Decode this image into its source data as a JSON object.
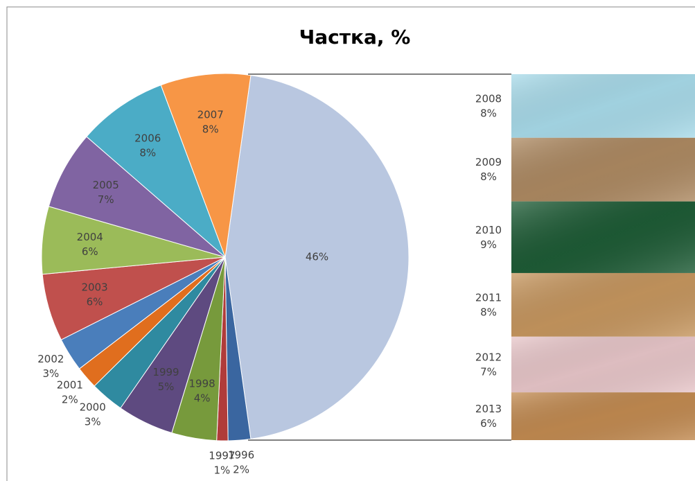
{
  "chart_data": {
    "type": "bar-of-pie",
    "title": "Частка, %",
    "categories": [
      null,
      "1996",
      "1997",
      "1998",
      "1999",
      "2000",
      "2001",
      "2002",
      "2003",
      "2004",
      "2005",
      "2006",
      "2007"
    ],
    "values": [
      46,
      2,
      1,
      4,
      5,
      3,
      2,
      3,
      6,
      6,
      7,
      8,
      8
    ],
    "value_labels": [
      "46%",
      "2%",
      "1%",
      "4%",
      "5%",
      "3%",
      "2%",
      "3%",
      "6%",
      "6%",
      "7%",
      "8%",
      "8%"
    ],
    "colors": [
      "#b9c7e0",
      "#3a66a0",
      "#b03c3a",
      "#779a3c",
      "#5e4a80",
      "#2f8aa0",
      "#e06e1e",
      "#4a7ebb",
      "#c0504d",
      "#9bbb59",
      "#8064a2",
      "#4bacc6",
      "#f79646"
    ],
    "bar": {
      "categories": [
        "2008",
        "2009",
        "2010",
        "2011",
        "2012",
        "2013"
      ],
      "values": [
        8,
        8,
        9,
        8,
        7,
        6
      ],
      "value_labels": [
        "8%",
        "8%",
        "9%",
        "8%",
        "7%",
        "6%"
      ],
      "colors": [
        "#a9dceb",
        "#ae8a62",
        "#1e5c36",
        "#c7975f",
        "#e9c7ca",
        "#c38b51"
      ]
    }
  }
}
